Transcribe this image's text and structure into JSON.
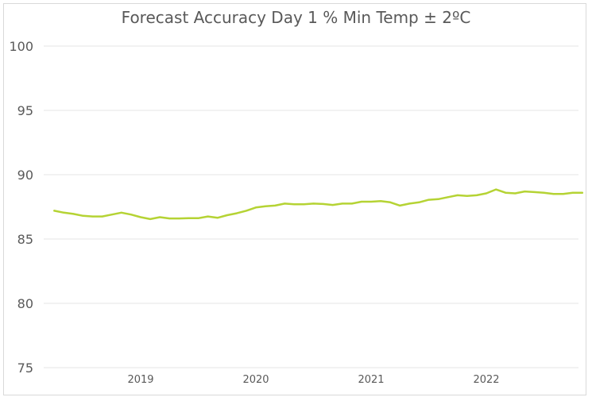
{
  "chart_data": {
    "type": "line",
    "title": "Forecast Accuracy Day 1 % Min Temp ± 2ºC",
    "xlabel": "",
    "ylabel": "",
    "ylim": [
      75,
      100
    ],
    "y_ticks": [
      "75",
      "80",
      "85",
      "90",
      "95",
      "100"
    ],
    "x_ticks": [
      "2019",
      "2020",
      "2021",
      "2022"
    ],
    "grid": true,
    "legend": "none",
    "line_color": "#b5d334",
    "x_months": [
      "2018-04",
      "2018-05",
      "2018-06",
      "2018-07",
      "2018-08",
      "2018-09",
      "2018-10",
      "2018-11",
      "2018-12",
      "2019-01",
      "2019-02",
      "2019-03",
      "2019-04",
      "2019-05",
      "2019-06",
      "2019-07",
      "2019-08",
      "2019-09",
      "2019-10",
      "2019-11",
      "2019-12",
      "2020-01",
      "2020-02",
      "2020-03",
      "2020-04",
      "2020-05",
      "2020-06",
      "2020-07",
      "2020-08",
      "2020-09",
      "2020-10",
      "2020-11",
      "2020-12",
      "2021-01",
      "2021-02",
      "2021-03",
      "2021-04",
      "2021-05",
      "2021-06",
      "2021-07",
      "2021-08",
      "2021-09",
      "2021-10",
      "2021-11",
      "2021-12",
      "2022-01",
      "2022-02",
      "2022-03",
      "2022-04",
      "2022-05",
      "2022-06",
      "2022-07",
      "2022-08",
      "2022-09",
      "2022-10",
      "2022-11"
    ],
    "series": [
      {
        "values": [
          87.2,
          87.05,
          86.95,
          86.8,
          86.75,
          86.75,
          86.9,
          87.05,
          86.9,
          86.7,
          86.55,
          86.7,
          86.6,
          86.6,
          86.62,
          86.62,
          86.75,
          86.65,
          86.85,
          87.0,
          87.2,
          87.45,
          87.55,
          87.6,
          87.75,
          87.7,
          87.7,
          87.75,
          87.72,
          87.65,
          87.75,
          87.75,
          87.9,
          87.9,
          87.95,
          87.85,
          87.6,
          87.75,
          87.85,
          88.05,
          88.1,
          88.25,
          88.4,
          88.35,
          88.4,
          88.55,
          88.85,
          88.6,
          88.55,
          88.7,
          88.65,
          88.6,
          88.5,
          88.5,
          88.6,
          88.6
        ]
      }
    ]
  }
}
